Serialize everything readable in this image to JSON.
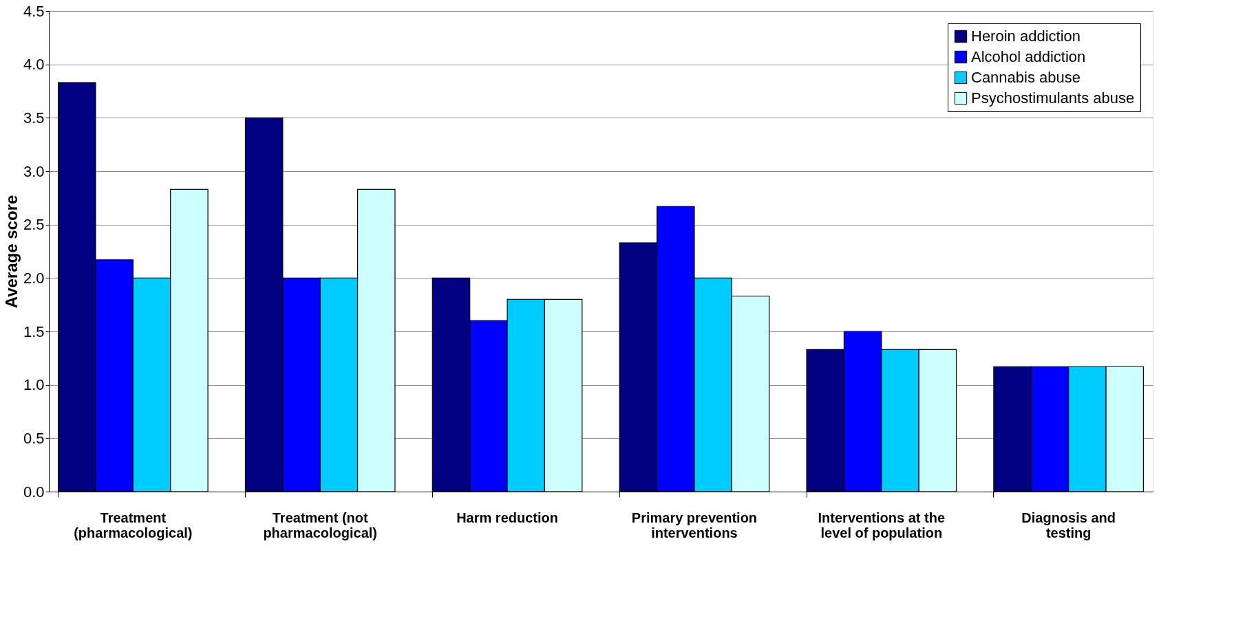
{
  "chart_data": {
    "type": "bar",
    "ylabel": "Average score",
    "categories": [
      "Treatment\n(pharmacological)",
      "Treatment (not\npharmacological)",
      "Harm reduction",
      "Primary prevention\ninterventions",
      "Interventions at the\nlevel of population",
      "Diagnosis and\ntesting"
    ],
    "series": [
      {
        "name": "Heroin addiction",
        "color": "#000080",
        "values": [
          3.83,
          3.5,
          2.0,
          2.33,
          1.33,
          1.17
        ]
      },
      {
        "name": "Alcohol addiction",
        "color": "#0000ff",
        "values": [
          2.17,
          2.0,
          1.6,
          2.67,
          1.5,
          1.17
        ]
      },
      {
        "name": "Cannabis abuse",
        "color": "#00ccff",
        "values": [
          2.0,
          2.0,
          1.8,
          2.0,
          1.33,
          1.17
        ]
      },
      {
        "name": "Psychostimulants abuse",
        "color": "#ccffff",
        "values": [
          2.83,
          2.83,
          1.8,
          1.83,
          1.33,
          1.17
        ]
      }
    ],
    "ylim": [
      0,
      4.5
    ],
    "yticks": [
      {
        "value": 0,
        "label": "0.0"
      },
      {
        "value": 0.5,
        "label": "0.5"
      },
      {
        "value": 1,
        "label": "1.0"
      },
      {
        "value": 1.5,
        "label": "1.5"
      },
      {
        "value": 2,
        "label": "2.0"
      },
      {
        "value": 2.5,
        "label": "2.5"
      },
      {
        "value": 3,
        "label": "3.0"
      },
      {
        "value": 3.5,
        "label": "3.5"
      },
      {
        "value": 4,
        "label": "4.0"
      },
      {
        "value": 4.5,
        "label": "4.5"
      }
    ],
    "grid": "y",
    "legend": "top right"
  }
}
